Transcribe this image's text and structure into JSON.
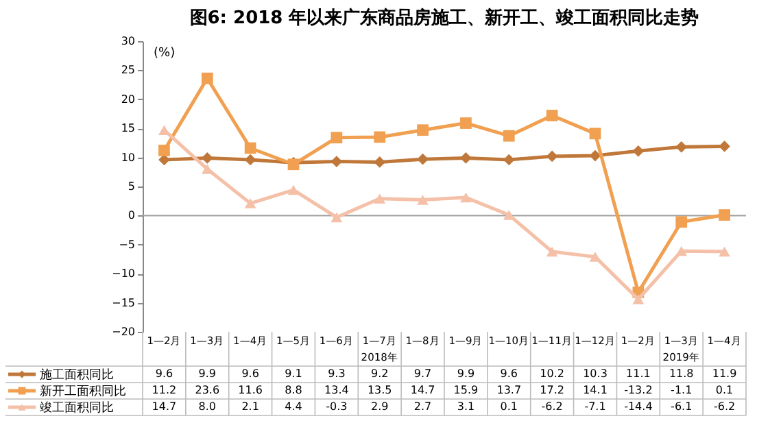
{
  "chart_data": {
    "type": "line",
    "title": "图6:      2018 年以来广东商品房施工、新开工、竣工面积同比走势",
    "ylabel": "(%)",
    "categories": [
      "1—2月",
      "1—3月",
      "1—4月",
      "1—5月",
      "1—6月",
      "1—7月",
      "1—8月",
      "1—9月",
      "1—10月",
      "1—11月",
      "1—12月",
      "1—2月",
      "1—3月",
      "1—4月"
    ],
    "series": [
      {
        "name": "施工面积同比",
        "color": "#c0783a",
        "marker": "diamond",
        "values": [
          9.6,
          9.9,
          9.6,
          9.1,
          9.3,
          9.2,
          9.7,
          9.9,
          9.6,
          10.2,
          10.3,
          11.1,
          11.8,
          11.9
        ],
        "value_labels": [
          "9.6",
          "9.9",
          "9.6",
          "9.1",
          "9.3",
          "9.2",
          "9.7",
          "9.9",
          "9.6",
          "10.2",
          "10.3",
          "11.1",
          "11.8",
          "11.9"
        ]
      },
      {
        "name": "新开工面积同比",
        "color": "#f0a050",
        "marker": "square",
        "values": [
          11.2,
          23.6,
          11.6,
          8.8,
          13.4,
          13.5,
          14.7,
          15.9,
          13.7,
          17.2,
          14.1,
          -13.2,
          -1.1,
          0.1
        ],
        "value_labels": [
          "11.2",
          "23.6",
          "11.6",
          "8.8",
          "13.4",
          "13.5",
          "14.7",
          "15.9",
          "13.7",
          "17.2",
          "14.1",
          "-13.2",
          "-1.1",
          "0.1"
        ]
      },
      {
        "name": "竣工面积同比",
        "color": "#f4c0a8",
        "marker": "triangle",
        "values": [
          14.7,
          8.0,
          2.1,
          4.4,
          -0.3,
          2.9,
          2.7,
          3.1,
          0.1,
          -6.2,
          -7.1,
          -14.4,
          -6.1,
          -6.2
        ],
        "value_labels": [
          "14.7",
          "8.0",
          "2.1",
          "4.4",
          "-0.3",
          "2.9",
          "2.7",
          "3.1",
          "0.1",
          "-6.2",
          "-7.1",
          "-14.4",
          "-6.1",
          "-6.2"
        ]
      }
    ],
    "ylim": [
      -20,
      30
    ],
    "yticks": [
      -20,
      -15,
      -10,
      -5,
      0,
      5,
      10,
      15,
      20,
      25,
      30
    ],
    "ref_lines": [
      {
        "axis": "y",
        "value": 0,
        "color": "#a0a0a0"
      }
    ],
    "annotations": [
      "2018年",
      "2019年"
    ],
    "legend": "bottom",
    "grid": false
  }
}
